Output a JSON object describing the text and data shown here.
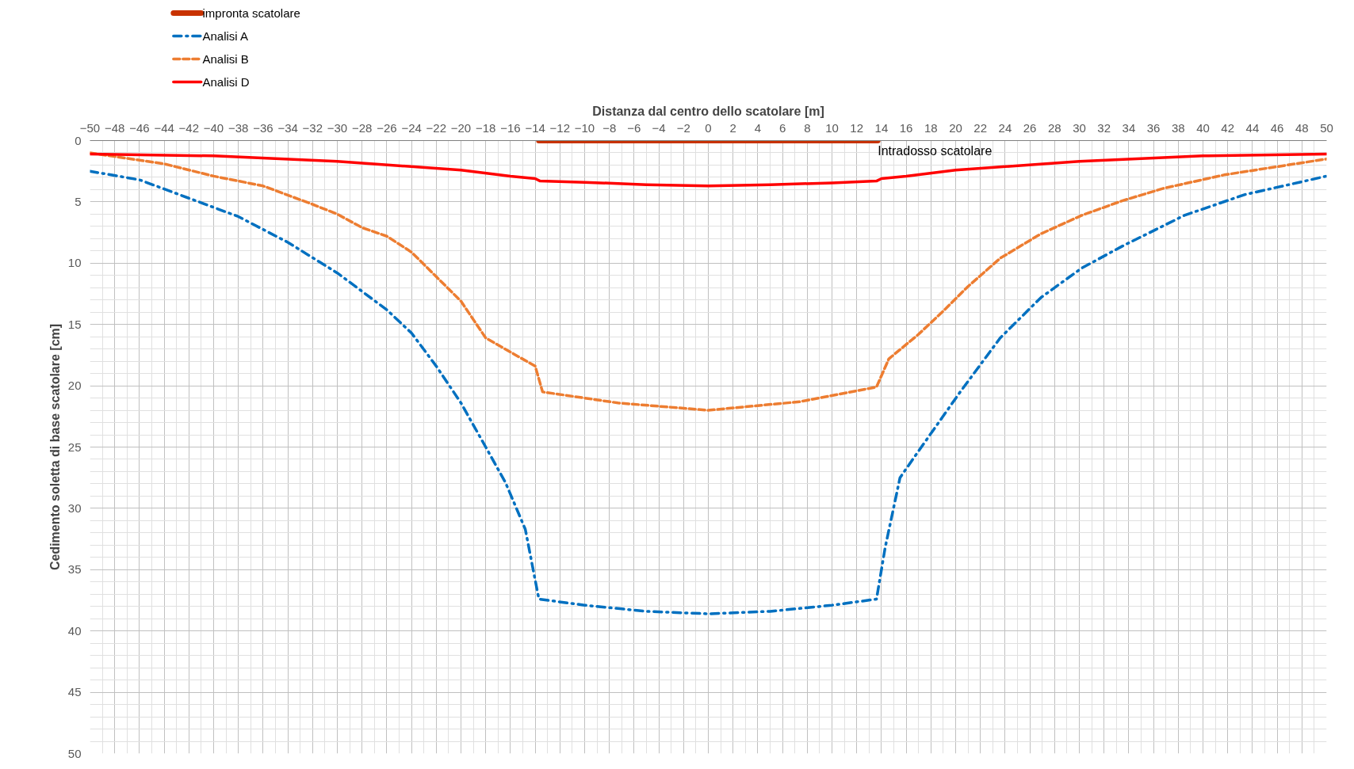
{
  "chart_data": {
    "type": "line",
    "xlabel": "Distanza dal centro dello scatolare [m]",
    "ylabel": "Cedimento soletta di base scatolare [cm]",
    "xlim": [
      -50,
      50
    ],
    "ylim": [
      50,
      0
    ],
    "xticks": [
      -50,
      -48,
      -46,
      -44,
      -42,
      -40,
      -38,
      -36,
      -34,
      -32,
      -30,
      -28,
      -26,
      -24,
      -22,
      -20,
      -18,
      -16,
      -14,
      -12,
      -10,
      -8,
      -6,
      -4,
      -2,
      0,
      2,
      4,
      6,
      8,
      10,
      12,
      14,
      16,
      18,
      20,
      22,
      24,
      26,
      28,
      30,
      32,
      34,
      36,
      38,
      40,
      42,
      44,
      46,
      48,
      50
    ],
    "yticks": [
      0,
      5,
      10,
      15,
      20,
      25,
      30,
      35,
      40,
      45,
      50
    ],
    "grid": true,
    "legend": "top left",
    "marker": "none",
    "annotations": [
      "Intradosso scatolare"
    ],
    "series": [
      {
        "name": "impronta scatolare",
        "color": "#c83200",
        "line_style": "solid",
        "x": [
          -13.7,
          13.7
        ],
        "values": [
          0,
          0
        ]
      },
      {
        "name": "Analisi A",
        "color": "#0070c0",
        "line_style": "dashdot",
        "x": [
          -50,
          -46,
          -42,
          -38,
          -34,
          -30,
          -26,
          -24,
          -22,
          -20,
          -18,
          -16.4,
          -14.8,
          -13.7,
          -10,
          -5,
          0,
          5,
          10,
          13.6,
          14.3,
          15.5,
          16.6,
          20.3,
          23.6,
          26.9,
          30.2,
          33.5,
          38.5,
          43.4,
          50
        ],
        "values": [
          2.5,
          3.2,
          4.7,
          6.2,
          8.3,
          10.8,
          13.8,
          15.7,
          18.4,
          21.4,
          25.0,
          27.9,
          31.7,
          37.4,
          37.9,
          38.4,
          38.6,
          38.4,
          37.9,
          37.4,
          33.2,
          27.5,
          25.9,
          20.6,
          16.1,
          12.8,
          10.4,
          8.6,
          6.1,
          4.4,
          2.9
        ]
      },
      {
        "name": "Analisi B",
        "color": "#ed7d31",
        "line_style": "dashed",
        "x": [
          -50,
          -48,
          -44,
          -40,
          -36,
          -32,
          -30,
          -28,
          -26,
          -24,
          -22,
          -20,
          -18,
          -14,
          -13.4,
          -7.3,
          0,
          7.4,
          13.6,
          14.6,
          17,
          19,
          21,
          23.6,
          26.9,
          30.2,
          33.5,
          36.8,
          41.7,
          50
        ],
        "values": [
          1.0,
          1.3,
          1.9,
          2.9,
          3.7,
          5.2,
          6.0,
          7.1,
          7.8,
          9.1,
          11.1,
          13.1,
          16.1,
          18.4,
          20.5,
          21.4,
          22.0,
          21.3,
          20.1,
          17.8,
          15.8,
          13.9,
          11.9,
          9.6,
          7.6,
          6.1,
          4.9,
          3.9,
          2.8,
          1.5
        ]
      },
      {
        "name": "Analisi D",
        "color": "#ff0000",
        "line_style": "solid",
        "x": [
          -50,
          -40,
          -30,
          -20,
          -16,
          -14,
          -13.6,
          -10,
          -5,
          0,
          5,
          10,
          13.6,
          14,
          16,
          20,
          30,
          40,
          50
        ],
        "values": [
          1.1,
          1.25,
          1.7,
          2.4,
          2.9,
          3.1,
          3.3,
          3.4,
          3.6,
          3.7,
          3.6,
          3.45,
          3.3,
          3.1,
          2.9,
          2.4,
          1.7,
          1.25,
          1.1
        ]
      }
    ]
  }
}
